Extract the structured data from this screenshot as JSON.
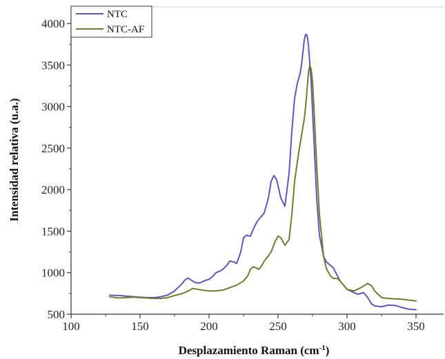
{
  "chart_data": {
    "type": "line",
    "xlabel": "Desplazamiento Raman (cm",
    "xlabel_sup": "-1",
    "xlabel_close": ")",
    "ylabel": "Intensidad relativa (u.a.)",
    "xlim": [
      100,
      370
    ],
    "ylim": [
      500,
      4200
    ],
    "x_ticks": [
      100,
      150,
      200,
      250,
      300,
      350
    ],
    "y_ticks": [
      500,
      1000,
      1500,
      2000,
      2500,
      3000,
      3500,
      4000
    ],
    "legend_position": "top-left",
    "grid": false,
    "series": [
      {
        "name": "NTC",
        "color": "#6a4fc0",
        "x": [
          128,
          132,
          135,
          140,
          145,
          150,
          155,
          160,
          165,
          170,
          175,
          180,
          183,
          185,
          188,
          190,
          193,
          195,
          198,
          200,
          203,
          205,
          208,
          210,
          213,
          215,
          218,
          220,
          223,
          225,
          227,
          230,
          233,
          235,
          238,
          240,
          243,
          245,
          247,
          249,
          252,
          255,
          258,
          260,
          262,
          264,
          266,
          267,
          268,
          269,
          270,
          271,
          272,
          274,
          276,
          278,
          280,
          283,
          285,
          290,
          295,
          300,
          305,
          308,
          310,
          312,
          315,
          318,
          320,
          325,
          330,
          335,
          340,
          345,
          350
        ],
        "y": [
          730,
          725,
          725,
          718,
          712,
          705,
          700,
          700,
          710,
          730,
          780,
          860,
          920,
          935,
          900,
          880,
          875,
          890,
          910,
          920,
          960,
          1000,
          1020,
          1040,
          1090,
          1140,
          1130,
          1110,
          1250,
          1420,
          1450,
          1440,
          1560,
          1620,
          1680,
          1720,
          1900,
          2100,
          2170,
          2120,
          1900,
          1800,
          2200,
          2700,
          3100,
          3280,
          3400,
          3500,
          3650,
          3800,
          3870,
          3860,
          3750,
          3300,
          2600,
          1900,
          1450,
          1200,
          1130,
          1060,
          900,
          800,
          760,
          740,
          750,
          760,
          700,
          620,
          600,
          590,
          610,
          605,
          580,
          560,
          555
        ]
      },
      {
        "name": "NTC-AF",
        "color": "#6d7d2a",
        "x": [
          128,
          132,
          135,
          140,
          145,
          150,
          155,
          160,
          165,
          170,
          175,
          180,
          185,
          188,
          190,
          195,
          200,
          205,
          210,
          215,
          220,
          225,
          228,
          230,
          232,
          234,
          236,
          238,
          240,
          242,
          245,
          248,
          250,
          252,
          255,
          258,
          260,
          262,
          265,
          267,
          269,
          270,
          271,
          272,
          273,
          274,
          275,
          276,
          278,
          280,
          283,
          285,
          288,
          290,
          293,
          295,
          300,
          305,
          310,
          313,
          315,
          318,
          320,
          325,
          330,
          335,
          340,
          345,
          350
        ],
        "y": [
          710,
          700,
          695,
          700,
          705,
          700,
          695,
          690,
          690,
          700,
          725,
          745,
          780,
          810,
          805,
          790,
          780,
          780,
          790,
          820,
          850,
          900,
          960,
          1040,
          1070,
          1060,
          1040,
          1080,
          1140,
          1180,
          1250,
          1380,
          1440,
          1420,
          1330,
          1400,
          1700,
          2100,
          2450,
          2650,
          2850,
          3000,
          3200,
          3400,
          3500,
          3450,
          3300,
          3000,
          2300,
          1700,
          1200,
          1050,
          960,
          930,
          930,
          900,
          800,
          780,
          820,
          850,
          870,
          840,
          780,
          700,
          690,
          685,
          680,
          670,
          660
        ]
      }
    ]
  }
}
